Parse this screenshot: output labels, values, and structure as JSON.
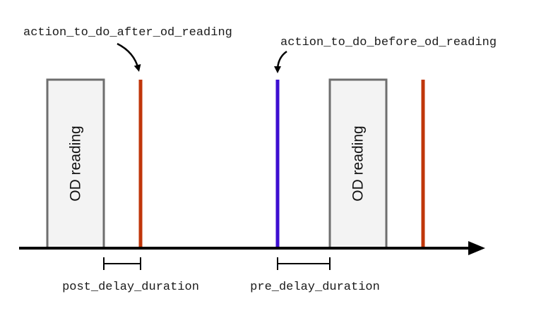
{
  "diagram": {
    "od_reading_label": "OD reading",
    "action_after_label": "action_to_do_after_od_reading",
    "action_before_label": "action_to_do_before_od_reading",
    "post_delay_label": "post_delay_duration",
    "pre_delay_label": "pre_delay_duration",
    "colors": {
      "after_action_line": "#c0360a",
      "before_action_line": "#3d0fd1",
      "od_box_fill": "#f3f3f3",
      "od_box_stroke": "#6e6e6e",
      "axis": "#000000"
    }
  }
}
